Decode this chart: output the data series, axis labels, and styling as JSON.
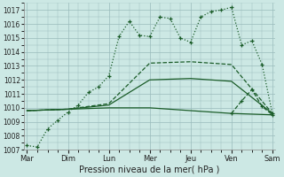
{
  "bg_color": "#cce8e4",
  "grid_color": "#99bbbb",
  "line_color": "#1a5c28",
  "ylim": [
    1007,
    1017.5
  ],
  "yticks": [
    1007,
    1008,
    1009,
    1010,
    1011,
    1012,
    1013,
    1014,
    1015,
    1016,
    1017
  ],
  "xlabel": "Pression niveau de la mer( hPa )",
  "day_labels": [
    "Mar",
    "Dim",
    "Lun",
    "Mer",
    "Jeu",
    "Ven",
    "Sam"
  ],
  "day_positions": [
    0,
    4,
    8,
    12,
    16,
    20,
    24
  ],
  "xlim": [
    -0.3,
    24.3
  ],
  "series": [
    {
      "x": [
        0,
        1,
        2,
        3,
        4,
        5,
        6,
        7,
        8,
        9,
        10,
        11,
        12,
        13,
        14,
        15,
        16,
        17,
        18,
        19,
        20,
        21,
        22,
        23,
        24
      ],
      "y": [
        1007.3,
        1007.2,
        1008.5,
        1009.1,
        1009.7,
        1010.2,
        1011.1,
        1011.5,
        1012.3,
        1015.1,
        1016.2,
        1015.2,
        1015.1,
        1016.5,
        1016.4,
        1015.0,
        1014.7,
        1016.5,
        1016.9,
        1017.0,
        1017.2,
        1014.5,
        1014.8,
        1013.1,
        1009.6
      ],
      "linestyle": ":",
      "marker": "+",
      "lw": 0.9
    },
    {
      "x": [
        0,
        4,
        8,
        12,
        16,
        20,
        24
      ],
      "y": [
        1009.8,
        1009.9,
        1010.3,
        1013.2,
        1013.3,
        1013.1,
        1009.6
      ],
      "linestyle": "--",
      "marker": null,
      "lw": 0.9
    },
    {
      "x": [
        0,
        4,
        8,
        12,
        16,
        20,
        24
      ],
      "y": [
        1009.8,
        1009.9,
        1010.2,
        1012.0,
        1012.1,
        1011.9,
        1009.6
      ],
      "linestyle": "-",
      "marker": null,
      "lw": 0.9
    },
    {
      "x": [
        0,
        4,
        8,
        12,
        16,
        20,
        24
      ],
      "y": [
        1009.8,
        1009.9,
        1010.0,
        1010.0,
        1009.8,
        1009.6,
        1009.5
      ],
      "linestyle": "-",
      "marker": null,
      "lw": 0.9
    },
    {
      "x": [
        20,
        21,
        22,
        23,
        24
      ],
      "y": [
        1009.6,
        1010.5,
        1011.3,
        1010.1,
        1009.5
      ],
      "linestyle": "--",
      "marker": "+",
      "lw": 0.9
    }
  ]
}
